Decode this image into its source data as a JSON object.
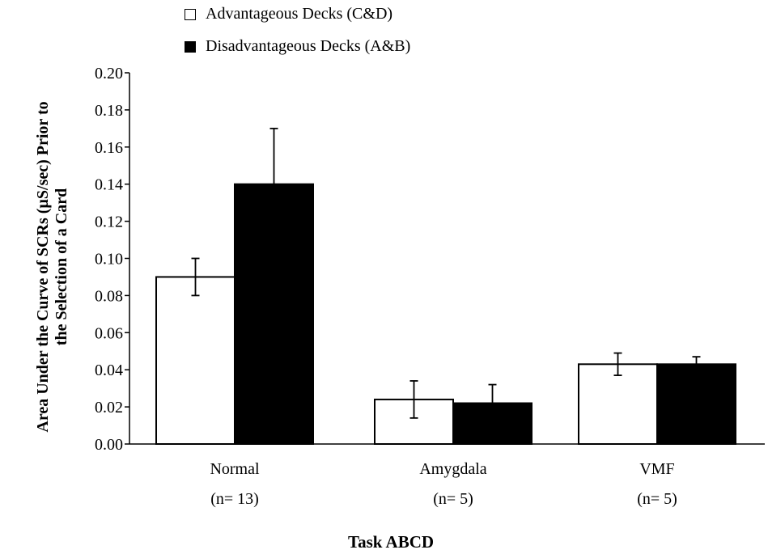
{
  "chart_data": {
    "type": "bar",
    "categories": [
      "Normal",
      "Amygdala",
      "VMF"
    ],
    "category_sublabels": [
      "(n= 13)",
      "(n= 5)",
      "(n= 5)"
    ],
    "series": [
      {
        "name": "Advantageous Decks (C&D)",
        "color": "#ffffff",
        "values": [
          0.09,
          0.024,
          0.043
        ],
        "errors": [
          0.01,
          0.01,
          0.006
        ]
      },
      {
        "name": "Disadvantageous Decks (A&B)",
        "color": "#000000",
        "values": [
          0.14,
          0.022,
          0.043
        ],
        "errors": [
          0.03,
          0.01,
          0.004
        ]
      }
    ],
    "ylim": [
      0,
      0.2
    ],
    "yticks": [
      "0.00",
      "0.02",
      "0.04",
      "0.06",
      "0.08",
      "0.10",
      "0.12",
      "0.14",
      "0.16",
      "0.18",
      "0.20"
    ],
    "ylabel_line1": "Area Under the Curve of SCRs (µS/sec) Prior to",
    "ylabel_line2": "the Selection of a Card",
    "xlabel": "Task ABCD",
    "legend_position": "top-left",
    "grid": false
  }
}
